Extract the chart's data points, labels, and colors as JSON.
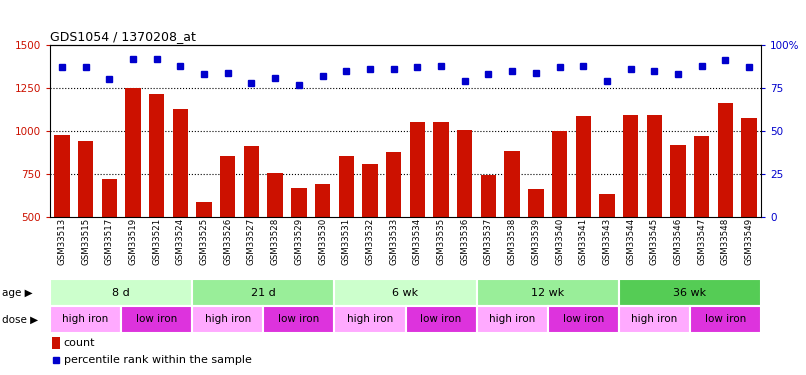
{
  "title": "GDS1054 / 1370208_at",
  "samples": [
    "GSM33513",
    "GSM33515",
    "GSM33517",
    "GSM33519",
    "GSM33521",
    "GSM33524",
    "GSM33525",
    "GSM33526",
    "GSM33527",
    "GSM33528",
    "GSM33529",
    "GSM33530",
    "GSM33531",
    "GSM33532",
    "GSM33533",
    "GSM33534",
    "GSM33535",
    "GSM33536",
    "GSM33537",
    "GSM33538",
    "GSM33539",
    "GSM33540",
    "GSM33541",
    "GSM33543",
    "GSM33544",
    "GSM33545",
    "GSM33546",
    "GSM33547",
    "GSM33548",
    "GSM33549"
  ],
  "counts": [
    975,
    940,
    720,
    1250,
    1215,
    1130,
    590,
    855,
    910,
    755,
    670,
    690,
    855,
    810,
    880,
    1050,
    1050,
    1005,
    745,
    885,
    665,
    1000,
    1090,
    635,
    1095,
    1095,
    920,
    970,
    1165,
    1075
  ],
  "percentiles": [
    87,
    87,
    80,
    92,
    92,
    88,
    83,
    84,
    78,
    81,
    77,
    82,
    85,
    86,
    86,
    87,
    88,
    79,
    83,
    85,
    84,
    87,
    88,
    79,
    86,
    85,
    83,
    88,
    91,
    87
  ],
  "ylim_left": [
    500,
    1500
  ],
  "ylim_right": [
    0,
    100
  ],
  "bar_color": "#cc1100",
  "dot_color": "#0000cc",
  "age_groups": [
    {
      "label": "8 d",
      "start": 0,
      "end": 6,
      "color": "#ccffcc"
    },
    {
      "label": "21 d",
      "start": 6,
      "end": 12,
      "color": "#99ee99"
    },
    {
      "label": "6 wk",
      "start": 12,
      "end": 18,
      "color": "#ccffcc"
    },
    {
      "label": "12 wk",
      "start": 18,
      "end": 24,
      "color": "#99ee99"
    },
    {
      "label": "36 wk",
      "start": 24,
      "end": 30,
      "color": "#55cc55"
    }
  ],
  "dose_groups": [
    {
      "label": "high iron",
      "start": 0,
      "end": 3,
      "color": "#ffaaff"
    },
    {
      "label": "low iron",
      "start": 3,
      "end": 6,
      "color": "#dd33dd"
    },
    {
      "label": "high iron",
      "start": 6,
      "end": 9,
      "color": "#ffaaff"
    },
    {
      "label": "low iron",
      "start": 9,
      "end": 12,
      "color": "#dd33dd"
    },
    {
      "label": "high iron",
      "start": 12,
      "end": 15,
      "color": "#ffaaff"
    },
    {
      "label": "low iron",
      "start": 15,
      "end": 18,
      "color": "#dd33dd"
    },
    {
      "label": "high iron",
      "start": 18,
      "end": 21,
      "color": "#ffaaff"
    },
    {
      "label": "low iron",
      "start": 21,
      "end": 24,
      "color": "#dd33dd"
    },
    {
      "label": "high iron",
      "start": 24,
      "end": 27,
      "color": "#ffaaff"
    },
    {
      "label": "low iron",
      "start": 27,
      "end": 30,
      "color": "#dd33dd"
    }
  ],
  "yticks_left": [
    500,
    750,
    1000,
    1250,
    1500
  ],
  "yticks_right": [
    0,
    25,
    50,
    75,
    100
  ],
  "grid_lines": [
    750,
    1000,
    1250
  ],
  "legend_count_label": "count",
  "legend_pct_label": "percentile rank within the sample",
  "age_label": "age",
  "dose_label": "dose",
  "xtick_bg": "#cccccc",
  "fig_bg": "#ffffff"
}
